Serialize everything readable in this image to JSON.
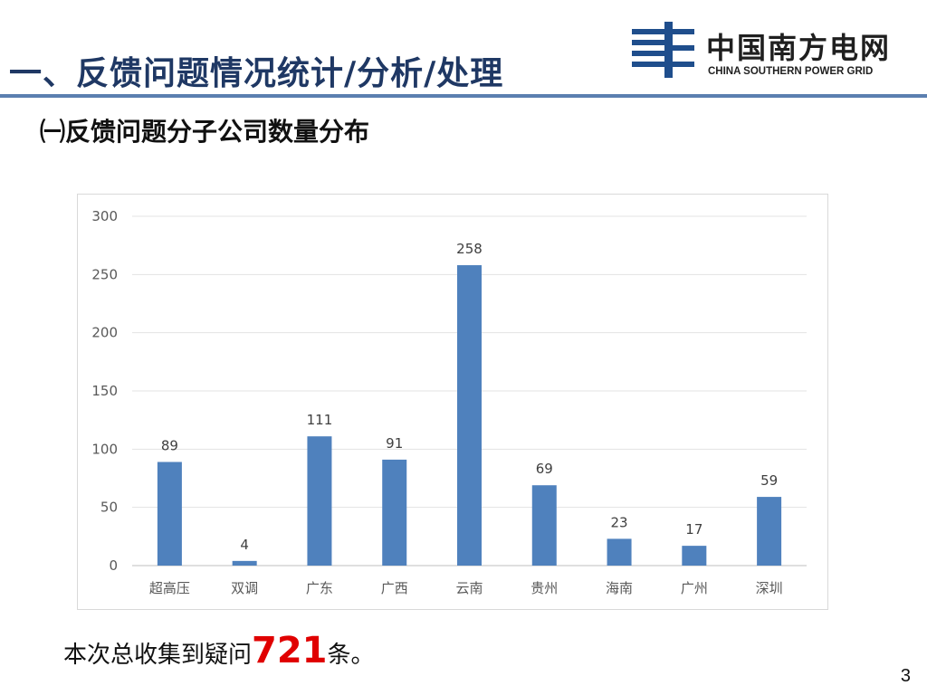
{
  "header": {
    "title": "一、反馈问题情况统计/分析/处理",
    "logo_cn": "中国南方电网",
    "logo_en": "CHINA SOUTHERN POWER GRID"
  },
  "subtitle": "㈠反馈问题分子公司数量分布",
  "chart_data": {
    "type": "bar",
    "categories": [
      "超高压",
      "双调",
      "广东",
      "广西",
      "云南",
      "贵州",
      "海南",
      "广州",
      "深圳"
    ],
    "values": [
      89,
      4,
      111,
      91,
      258,
      69,
      23,
      17,
      59
    ],
    "title": "",
    "xlabel": "",
    "ylabel": "",
    "ylim": [
      0,
      300
    ],
    "yticks": [
      0,
      50,
      100,
      150,
      200,
      250,
      300
    ],
    "grid": true,
    "bar_color": "#4f81bd"
  },
  "summary": {
    "prefix": "本次总收集到疑问",
    "total": "721",
    "suffix": "条。"
  },
  "page_number": "3",
  "colors": {
    "title": "#1f3864",
    "rule": "#5b7fb0",
    "highlight": "#e00000",
    "logo_blue": "#1f4e8c"
  }
}
